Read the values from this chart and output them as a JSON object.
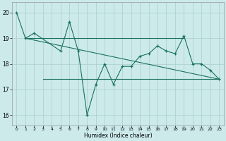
{
  "xlabel": "Humidex (Indice chaleur)",
  "background_color": "#cceaea",
  "grid_color": "#aacccc",
  "line_color": "#1a7060",
  "xlim": [
    -0.5,
    23.5
  ],
  "ylim": [
    15.6,
    20.4
  ],
  "yticks": [
    16,
    17,
    18,
    19,
    20
  ],
  "xticks": [
    0,
    1,
    2,
    3,
    4,
    5,
    6,
    7,
    8,
    9,
    10,
    11,
    12,
    13,
    14,
    15,
    16,
    17,
    18,
    19,
    20,
    21,
    22,
    23
  ],
  "curve1_x": [
    0,
    1,
    2,
    5,
    6,
    7,
    8,
    9,
    10,
    11,
    12,
    13,
    14,
    15,
    16,
    17,
    18,
    19,
    20,
    21,
    22,
    23
  ],
  "curve1_y": [
    20.0,
    19.0,
    19.2,
    18.5,
    19.65,
    18.5,
    16.0,
    17.2,
    18.0,
    17.2,
    17.9,
    17.9,
    18.3,
    18.4,
    18.7,
    18.5,
    18.4,
    19.1,
    18.0,
    18.0,
    17.75,
    17.4
  ],
  "flat_line_x": [
    1,
    19
  ],
  "flat_line_y": [
    19.0,
    19.0
  ],
  "diag_line_x": [
    1,
    23
  ],
  "diag_line_y": [
    19.0,
    17.4
  ],
  "flat2_line_x": [
    3,
    23
  ],
  "flat2_line_y": [
    17.4,
    17.4
  ]
}
